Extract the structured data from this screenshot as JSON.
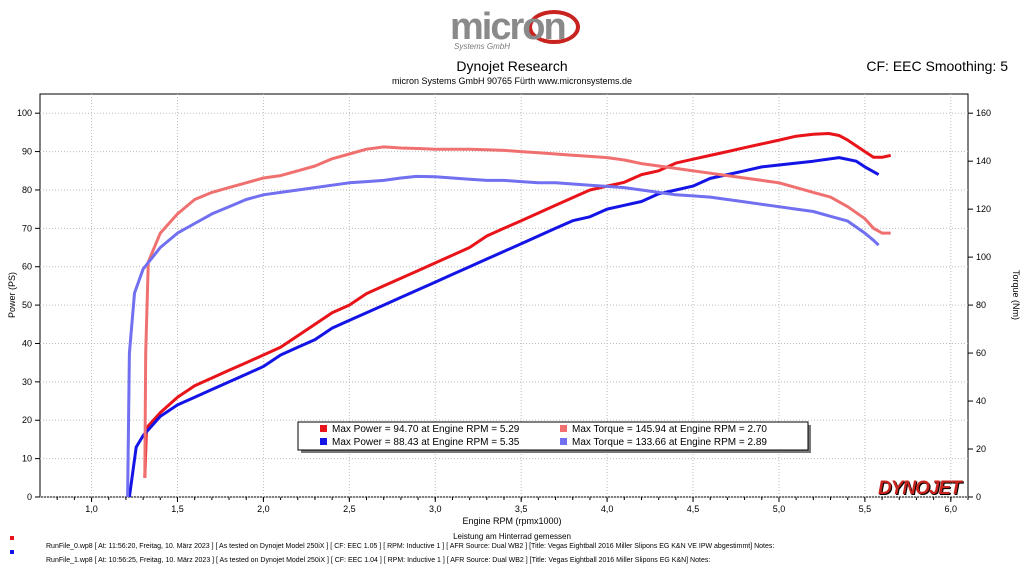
{
  "header": {
    "logo_text": "micron",
    "logo_sub": "Systems GmbH",
    "title": "Dynojet Research",
    "subtitle": "micron Systems GmbH  90765 Fürth www.micronsystems.de",
    "smoothing": "CF: EEC Smoothing: 5"
  },
  "brand": "DYNOJET",
  "runs": [
    {
      "color": "#e8141a",
      "text": "RunFile_0.wp8  [ At:  11:56:20, Freitag, 10. März 2023 ] [ As tested on Dynojet Model 250iX ] [ CF:  EEC 1.05 ] [ RPM:  Inductive 1 ] [ AFR Source:  Dual WB2 ] [Title:  Vegas Eightball 2016 Miller Slipons EG K&N   VE IPW abgestimmt]   Notes:"
    },
    {
      "color": "#1414e6",
      "text": "RunFile_1.wp8  [ At:  10:56:25, Freitag, 10. März 2023 ] [ As tested on Dynojet Model 250iX ] [ CF:  EEC 1.04 ] [ RPM:  Inductive 1 ] [ AFR Source:  Dual WB2 ] [Title:  Vegas Eightball 2016 Miller Slipons EG K&N]   Notes:"
    }
  ],
  "chart_data": {
    "type": "line",
    "xlabel": "Engine RPM (rpmx1000)",
    "xlabel2": "Leistung am Hinterrad gemessen",
    "ylabel": "Power (PS)",
    "y2label": "Torque (Nm)",
    "xlim": [
      0.7,
      6.1
    ],
    "ylim": [
      0,
      105
    ],
    "y2lim": [
      0,
      168
    ],
    "xticks": [
      "1,0",
      "1,5",
      "2,0",
      "2,5",
      "3,0",
      "3,5",
      "4,0",
      "4,5",
      "5,0",
      "5,5",
      "6,0"
    ],
    "yticks": [
      "0",
      "10",
      "20",
      "30",
      "40",
      "50",
      "60",
      "70",
      "80",
      "90",
      "100"
    ],
    "y2ticks": [
      "0",
      "20",
      "40",
      "60",
      "80",
      "100",
      "120",
      "140",
      "160"
    ],
    "grid": true,
    "legend": [
      {
        "color": "#e8141a",
        "text": "Max Power = 94.70 at Engine RPM = 5.29"
      },
      {
        "color": "#1414e6",
        "text": "Max Power = 88.43 at Engine RPM = 5.35"
      },
      {
        "color": "#f07070",
        "text": "Max Torque = 145.94 at Engine RPM = 2.70"
      },
      {
        "color": "#7070f0",
        "text": "Max Torque = 133.66 at Engine RPM = 2.89"
      }
    ],
    "series": [
      {
        "axis": "left",
        "color": "#e8141a",
        "points": [
          [
            1.31,
            5
          ],
          [
            1.32,
            18
          ],
          [
            1.4,
            22
          ],
          [
            1.5,
            26
          ],
          [
            1.6,
            29
          ],
          [
            1.7,
            31
          ],
          [
            1.8,
            33
          ],
          [
            1.9,
            35
          ],
          [
            2.0,
            37
          ],
          [
            2.1,
            39
          ],
          [
            2.2,
            42
          ],
          [
            2.3,
            45
          ],
          [
            2.4,
            48
          ],
          [
            2.5,
            50
          ],
          [
            2.6,
            53
          ],
          [
            2.7,
            55
          ],
          [
            2.8,
            57
          ],
          [
            2.9,
            59
          ],
          [
            3.0,
            61
          ],
          [
            3.1,
            63
          ],
          [
            3.2,
            65
          ],
          [
            3.3,
            68
          ],
          [
            3.4,
            70
          ],
          [
            3.5,
            72
          ],
          [
            3.6,
            74
          ],
          [
            3.7,
            76
          ],
          [
            3.8,
            78
          ],
          [
            3.9,
            80
          ],
          [
            4.0,
            81
          ],
          [
            4.1,
            82
          ],
          [
            4.2,
            84
          ],
          [
            4.3,
            85
          ],
          [
            4.4,
            87
          ],
          [
            4.5,
            88
          ],
          [
            4.6,
            89
          ],
          [
            4.7,
            90
          ],
          [
            4.8,
            91
          ],
          [
            4.9,
            92
          ],
          [
            5.0,
            93
          ],
          [
            5.1,
            94
          ],
          [
            5.2,
            94.5
          ],
          [
            5.29,
            94.7
          ],
          [
            5.35,
            94.2
          ],
          [
            5.4,
            93
          ],
          [
            5.5,
            90
          ],
          [
            5.55,
            88.5
          ],
          [
            5.6,
            88.5
          ],
          [
            5.65,
            89
          ]
        ]
      },
      {
        "axis": "left",
        "color": "#1414e6",
        "points": [
          [
            1.22,
            0
          ],
          [
            1.26,
            13
          ],
          [
            1.3,
            16
          ],
          [
            1.4,
            21
          ],
          [
            1.5,
            24
          ],
          [
            1.6,
            26
          ],
          [
            1.7,
            28
          ],
          [
            1.8,
            30
          ],
          [
            1.9,
            32
          ],
          [
            2.0,
            34
          ],
          [
            2.1,
            37
          ],
          [
            2.2,
            39
          ],
          [
            2.3,
            41
          ],
          [
            2.4,
            44
          ],
          [
            2.5,
            46
          ],
          [
            2.6,
            48
          ],
          [
            2.7,
            50
          ],
          [
            2.8,
            52
          ],
          [
            2.9,
            54
          ],
          [
            3.0,
            56
          ],
          [
            3.1,
            58
          ],
          [
            3.2,
            60
          ],
          [
            3.3,
            62
          ],
          [
            3.4,
            64
          ],
          [
            3.5,
            66
          ],
          [
            3.6,
            68
          ],
          [
            3.7,
            70
          ],
          [
            3.8,
            72
          ],
          [
            3.9,
            73
          ],
          [
            4.0,
            75
          ],
          [
            4.1,
            76
          ],
          [
            4.2,
            77
          ],
          [
            4.3,
            79
          ],
          [
            4.4,
            80
          ],
          [
            4.5,
            81
          ],
          [
            4.6,
            83
          ],
          [
            4.7,
            84
          ],
          [
            4.8,
            85
          ],
          [
            4.9,
            86
          ],
          [
            5.0,
            86.5
          ],
          [
            5.1,
            87
          ],
          [
            5.2,
            87.5
          ],
          [
            5.35,
            88.43
          ],
          [
            5.45,
            87.5
          ],
          [
            5.5,
            86
          ],
          [
            5.58,
            84
          ]
        ]
      },
      {
        "axis": "right",
        "color": "#f07070",
        "points": [
          [
            1.31,
            8
          ],
          [
            1.315,
            60
          ],
          [
            1.33,
            98
          ],
          [
            1.4,
            110
          ],
          [
            1.5,
            118
          ],
          [
            1.6,
            124
          ],
          [
            1.7,
            127
          ],
          [
            1.8,
            129
          ],
          [
            1.9,
            131
          ],
          [
            2.0,
            133
          ],
          [
            2.1,
            134
          ],
          [
            2.2,
            136
          ],
          [
            2.3,
            138
          ],
          [
            2.4,
            141
          ],
          [
            2.5,
            143
          ],
          [
            2.6,
            145
          ],
          [
            2.7,
            145.94
          ],
          [
            2.8,
            145.5
          ],
          [
            2.9,
            145.3
          ],
          [
            3.0,
            145
          ],
          [
            3.1,
            145
          ],
          [
            3.2,
            145
          ],
          [
            3.3,
            144.8
          ],
          [
            3.4,
            144.5
          ],
          [
            3.5,
            144
          ],
          [
            3.6,
            143.5
          ],
          [
            3.7,
            143
          ],
          [
            3.8,
            142.5
          ],
          [
            3.9,
            142
          ],
          [
            4.0,
            141.5
          ],
          [
            4.1,
            140.5
          ],
          [
            4.2,
            139
          ],
          [
            4.3,
            138
          ],
          [
            4.4,
            137
          ],
          [
            4.5,
            136
          ],
          [
            4.6,
            135
          ],
          [
            4.7,
            134
          ],
          [
            4.8,
            133
          ],
          [
            4.9,
            132
          ],
          [
            5.0,
            131
          ],
          [
            5.1,
            129
          ],
          [
            5.2,
            127
          ],
          [
            5.3,
            125
          ],
          [
            5.4,
            121
          ],
          [
            5.5,
            116
          ],
          [
            5.55,
            112
          ],
          [
            5.6,
            110
          ],
          [
            5.65,
            110
          ]
        ]
      },
      {
        "axis": "right",
        "color": "#7070f0",
        "points": [
          [
            1.21,
            0
          ],
          [
            1.22,
            60
          ],
          [
            1.25,
            85
          ],
          [
            1.3,
            95
          ],
          [
            1.4,
            104
          ],
          [
            1.5,
            110
          ],
          [
            1.6,
            114
          ],
          [
            1.7,
            118
          ],
          [
            1.8,
            121
          ],
          [
            1.9,
            124
          ],
          [
            2.0,
            126
          ],
          [
            2.1,
            127
          ],
          [
            2.2,
            128
          ],
          [
            2.3,
            129
          ],
          [
            2.4,
            130
          ],
          [
            2.5,
            131
          ],
          [
            2.6,
            131.5
          ],
          [
            2.7,
            132
          ],
          [
            2.8,
            133
          ],
          [
            2.89,
            133.66
          ],
          [
            3.0,
            133.5
          ],
          [
            3.1,
            133
          ],
          [
            3.2,
            132.5
          ],
          [
            3.3,
            132
          ],
          [
            3.4,
            132
          ],
          [
            3.5,
            131.5
          ],
          [
            3.6,
            131
          ],
          [
            3.7,
            131
          ],
          [
            3.8,
            130.5
          ],
          [
            3.9,
            130
          ],
          [
            4.0,
            129.5
          ],
          [
            4.1,
            129
          ],
          [
            4.2,
            128
          ],
          [
            4.3,
            127
          ],
          [
            4.4,
            126
          ],
          [
            4.5,
            125.5
          ],
          [
            4.6,
            125
          ],
          [
            4.7,
            124
          ],
          [
            4.8,
            123
          ],
          [
            4.9,
            122
          ],
          [
            5.0,
            121
          ],
          [
            5.1,
            120
          ],
          [
            5.2,
            119
          ],
          [
            5.3,
            117
          ],
          [
            5.4,
            115
          ],
          [
            5.5,
            110
          ],
          [
            5.55,
            107
          ],
          [
            5.58,
            105
          ]
        ]
      }
    ]
  }
}
